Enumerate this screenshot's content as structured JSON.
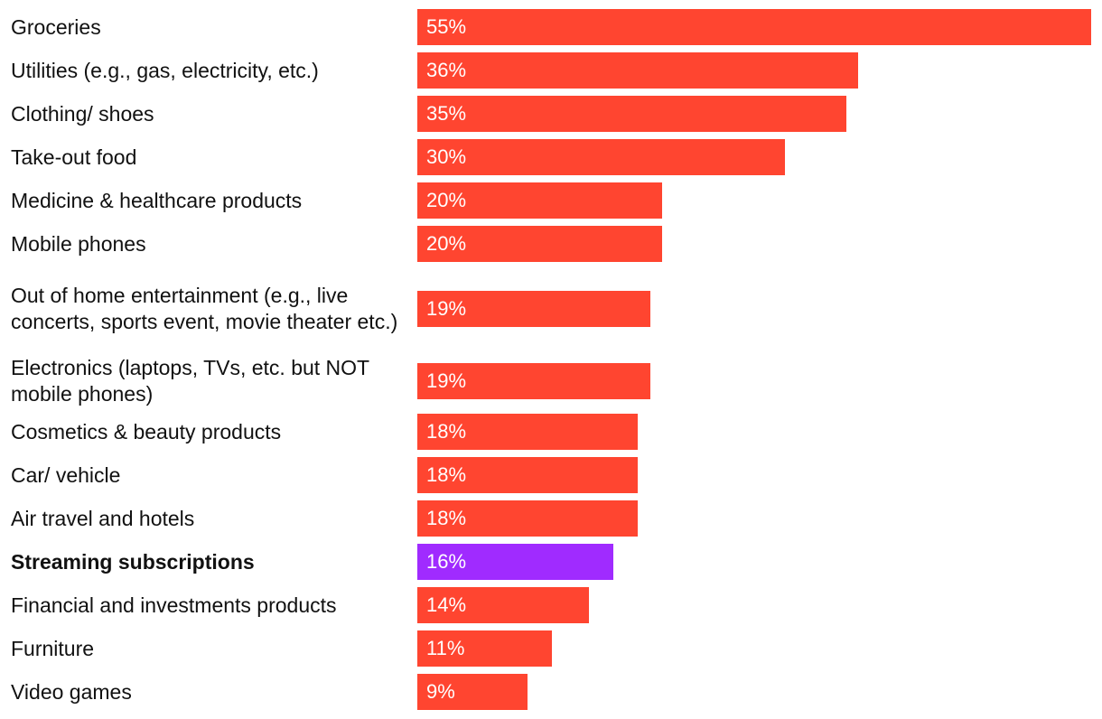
{
  "chart_data": {
    "type": "bar",
    "orientation": "horizontal",
    "categories": [
      "Groceries",
      "Utilities (e.g., gas, electricity, etc.)",
      "Clothing/ shoes",
      "Take-out food",
      "Medicine & healthcare products",
      "Mobile phones",
      "Out of home entertainment (e.g., live concerts, sports event, movie theater etc.)",
      "Electronics (laptops, TVs, etc. but NOT mobile phones)",
      "Cosmetics & beauty products",
      "Car/ vehicle",
      "Air travel and hotels",
      "Streaming subscriptions",
      "Financial and investments products",
      "Furniture",
      "Video games"
    ],
    "values": [
      55,
      36,
      35,
      30,
      20,
      20,
      19,
      19,
      18,
      18,
      18,
      16,
      14,
      11,
      9
    ],
    "value_labels": [
      "55%",
      "36%",
      "35%",
      "30%",
      "20%",
      "20%",
      "19%",
      "19%",
      "18%",
      "18%",
      "18%",
      "16%",
      "14%",
      "11%",
      "9%"
    ],
    "highlighted_category": "Streaming subscriptions",
    "unit": "%",
    "xlim": [
      0,
      55
    ],
    "colors": {
      "default": "#FF4530",
      "highlight": "#A02BFF"
    },
    "title": "",
    "xlabel": "",
    "ylabel": ""
  }
}
